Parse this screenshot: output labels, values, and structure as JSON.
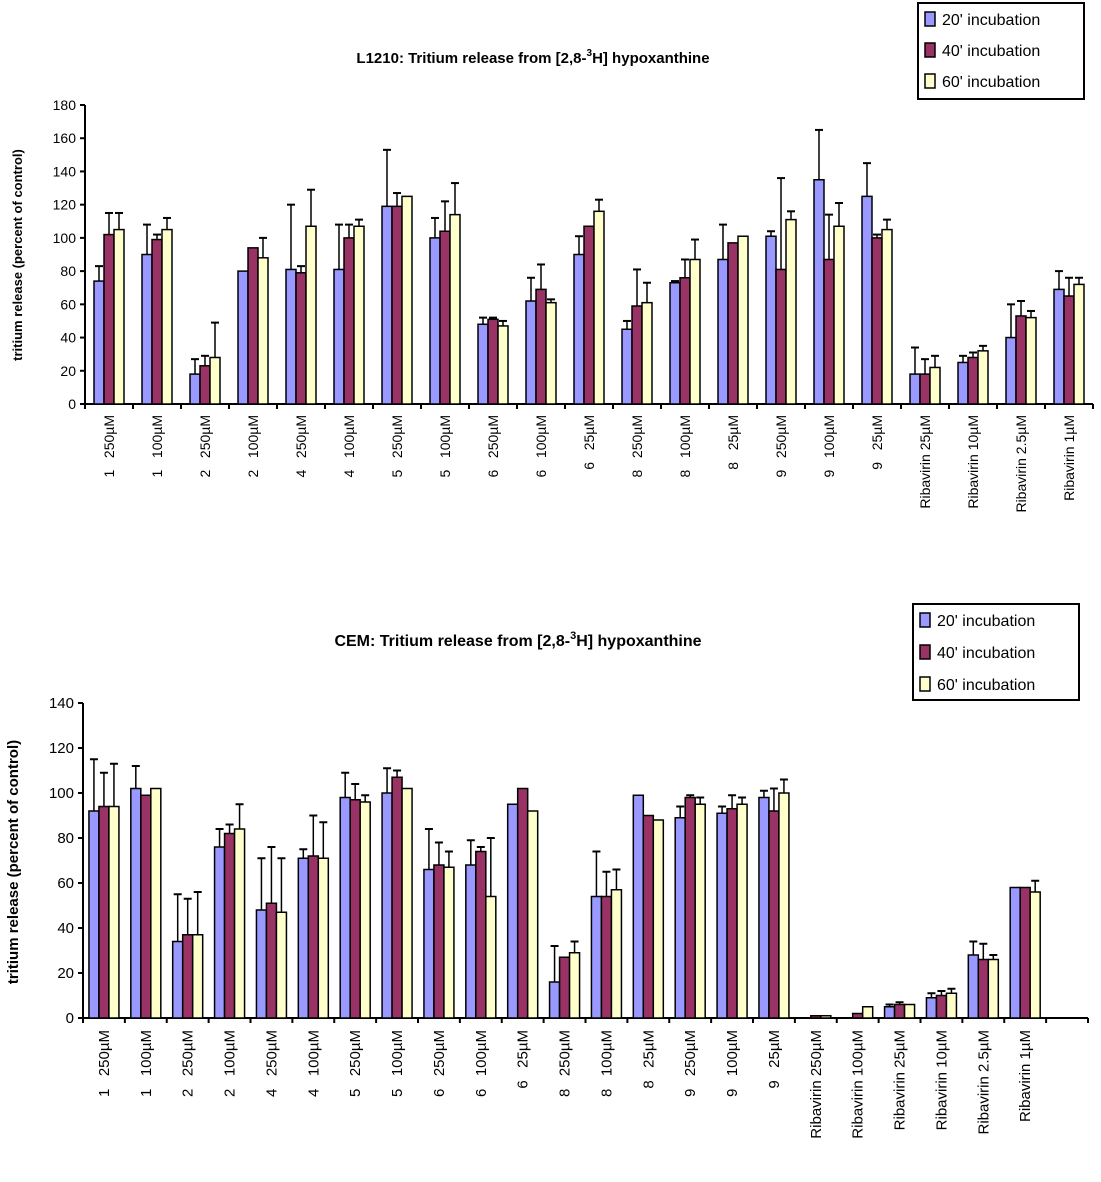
{
  "chart_data": [
    {
      "type": "bar",
      "title_pre": "L1210: Tritium release from [2,8-",
      "title_sup": "3",
      "title_post": "H] hypoxanthine",
      "xlabel": "",
      "ylabel": "tritium release (percent of control)",
      "ylim": [
        0,
        180
      ],
      "yticks": [
        0,
        20,
        40,
        60,
        80,
        100,
        120,
        140,
        160,
        180
      ],
      "legend_position": "top-right",
      "categories": [
        "1   250µM",
        "1   100µM",
        "2   250µM",
        "2   100µM",
        "4   250µM",
        "4   100µM",
        "5   250µM",
        "5   100µM",
        "6   250µM",
        "6   100µM",
        "6   25µM",
        "8   250µM",
        "8   100µM",
        "8   25µM",
        "9   250µM",
        "9   100µM",
        "9   25µM",
        "Ribavirin 25µM",
        "Ribavirin 10µM",
        "Ribavirin 2.5µM",
        "Ribavirin 1µM"
      ],
      "series": [
        {
          "name": "20' incubation",
          "color": "#9999ff",
          "values": [
            74,
            90,
            18,
            80,
            81,
            81,
            119,
            100,
            48,
            62,
            90,
            45,
            73,
            87,
            101,
            135,
            125,
            18,
            25,
            40,
            69
          ],
          "error_upper": [
            83,
            108,
            27,
            80,
            120,
            108,
            153,
            112,
            52,
            76,
            101,
            50,
            74,
            108,
            104,
            165,
            145,
            34,
            29,
            60,
            80
          ]
        },
        {
          "name": "40' incubation",
          "color": "#993366",
          "values": [
            102,
            99,
            23,
            94,
            79,
            100,
            119,
            104,
            51,
            69,
            107,
            59,
            76,
            97,
            81,
            87,
            100,
            18,
            28,
            53,
            65
          ],
          "error_upper": [
            115,
            102,
            29,
            94,
            83,
            108,
            127,
            122,
            52,
            84,
            107,
            81,
            87,
            97,
            136,
            114,
            102,
            27,
            31,
            62,
            76
          ]
        },
        {
          "name": "60' incubation",
          "color": "#ffffcc",
          "values": [
            105,
            105,
            28,
            88,
            107,
            107,
            125,
            114,
            47,
            61,
            116,
            61,
            87,
            101,
            111,
            107,
            105,
            22,
            32,
            52,
            72
          ],
          "error_upper": [
            115,
            112,
            49,
            100,
            129,
            111,
            125,
            133,
            50,
            63,
            123,
            73,
            99,
            101,
            116,
            121,
            111,
            29,
            35,
            56,
            76
          ]
        }
      ]
    },
    {
      "type": "bar",
      "title_pre": "CEM: Tritium release from [2,8-",
      "title_sup": "3",
      "title_post": "H] hypoxanthine",
      "xlabel": "",
      "ylabel": "tritium release (percent of control)",
      "ylim": [
        0,
        140
      ],
      "yticks": [
        0,
        20,
        40,
        60,
        80,
        100,
        120,
        140
      ],
      "legend_position": "top-right",
      "categories": [
        "1   250µM",
        "1   100µM",
        "2   250µM",
        "2   100µM",
        "4   250µM",
        "4   100µM",
        "5   250µM",
        "5   100µM",
        "6   250µM",
        "6   100µM",
        "6   25µM",
        "8   250µM",
        "8   100µM",
        "8   25µM",
        "9   250µM",
        "9   100µM",
        "9   25µM",
        "Ribavirin 250µM",
        "Ribavirin 100µM",
        "Ribavirin 25µM",
        "Ribavirin 10µM",
        "Ribavirin 2.5µM",
        "Ribavirin 1µM"
      ],
      "series": [
        {
          "name": "20' incubation",
          "color": "#9999ff",
          "values": [
            92,
            102,
            34,
            76,
            48,
            71,
            98,
            100,
            66,
            68,
            95,
            16,
            54,
            99,
            89,
            91,
            98,
            0,
            0,
            5,
            9,
            28,
            58
          ],
          "error_upper": [
            115,
            112,
            55,
            84,
            71,
            75,
            109,
            111,
            84,
            79,
            95,
            32,
            74,
            99,
            94,
            94,
            101,
            0,
            0,
            6,
            11,
            34,
            58
          ]
        },
        {
          "name": "40' incubation",
          "color": "#993366",
          "values": [
            94,
            99,
            37,
            82,
            51,
            72,
            97,
            107,
            68,
            74,
            102,
            27,
            54,
            90,
            98,
            93,
            92,
            1,
            2,
            6,
            10,
            26,
            58
          ],
          "error_upper": [
            109,
            99,
            53,
            86,
            76,
            90,
            104,
            110,
            78,
            76,
            102,
            27,
            65,
            90,
            99,
            99,
            102,
            1,
            2,
            7,
            12,
            33,
            58
          ]
        },
        {
          "name": "60' incubation",
          "color": "#ffffcc",
          "values": [
            94,
            102,
            37,
            84,
            47,
            71,
            96,
            102,
            67,
            54,
            92,
            29,
            57,
            88,
            95,
            95,
            100,
            1,
            5,
            6,
            11,
            26,
            56
          ],
          "error_upper": [
            113,
            102,
            56,
            95,
            71,
            87,
            99,
            102,
            74,
            80,
            92,
            34,
            66,
            88,
            98,
            98,
            106,
            1,
            5,
            6,
            13,
            28,
            61
          ]
        }
      ]
    }
  ]
}
